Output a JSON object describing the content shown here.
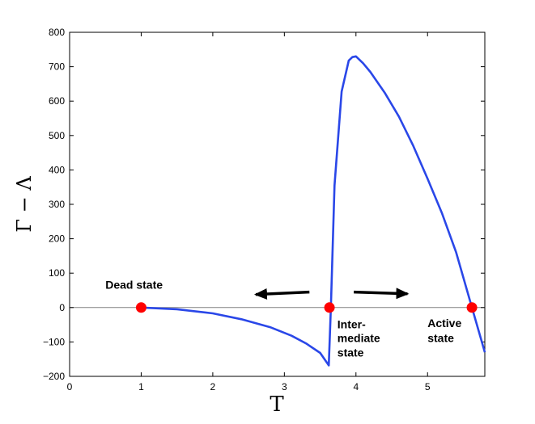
{
  "chart_data": {
    "type": "line",
    "xlabel": "T",
    "ylabel": "Γ − Λ",
    "xlim": [
      0,
      5.8
    ],
    "ylim": [
      -200,
      800
    ],
    "xticks": [
      0,
      1,
      2,
      3,
      4,
      5
    ],
    "yticks": [
      -200,
      -100,
      0,
      100,
      200,
      300,
      400,
      500,
      600,
      700,
      800
    ],
    "grid": false,
    "line_color": "#2a47e8",
    "point_color": "#ff0000",
    "series": [
      {
        "x": [
          1.0,
          1.5,
          2.0,
          2.4,
          2.8,
          3.1,
          3.3,
          3.5,
          3.62,
          3.65,
          3.7,
          3.8,
          3.9,
          3.95,
          4.0,
          4.05,
          4.1,
          4.2,
          4.4,
          4.6,
          4.8,
          5.0,
          5.2,
          5.4,
          5.62,
          5.8
        ],
        "y": [
          0,
          -5,
          -17,
          -34,
          -57,
          -82,
          -104,
          -132,
          -168,
          0,
          355,
          628,
          718,
          728,
          730,
          720,
          710,
          685,
          625,
          555,
          470,
          375,
          275,
          160,
          0,
          -130
        ]
      }
    ],
    "points": [
      {
        "x": 1.0,
        "y": 0
      },
      {
        "x": 3.63,
        "y": 0
      },
      {
        "x": 5.62,
        "y": 0
      }
    ],
    "annotations": [
      {
        "text": "Dead state",
        "x": 0.5,
        "y": 55
      },
      {
        "text": "Inter-",
        "x": 3.74,
        "y": -60
      },
      {
        "text": "mediate",
        "x": 3.74,
        "y": -100
      },
      {
        "text": "state",
        "x": 3.74,
        "y": -143
      },
      {
        "text": "Active",
        "x": 5.0,
        "y": -57
      },
      {
        "text": "state",
        "x": 5.0,
        "y": -100
      }
    ],
    "arrows": [
      {
        "from": [
          3.35,
          45
        ],
        "to": [
          2.6,
          38
        ]
      },
      {
        "from": [
          3.97,
          45
        ],
        "to": [
          4.72,
          40
        ]
      }
    ]
  }
}
